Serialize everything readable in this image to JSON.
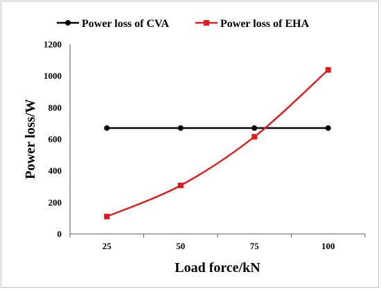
{
  "chart_data": {
    "type": "line",
    "title": "",
    "xlabel": "Load force/kN",
    "ylabel": "Power loss/W",
    "categories": [
      "25",
      "50",
      "75",
      "100"
    ],
    "ylim": [
      0,
      1200
    ],
    "yticks": [
      "0",
      "200",
      "400",
      "600",
      "800",
      "1000",
      "1200"
    ],
    "grid": false,
    "legend_position": "top",
    "series": [
      {
        "name": "Power loss of CVA",
        "values": [
          670,
          670,
          670,
          670
        ],
        "color": "#000000",
        "marker": "circle"
      },
      {
        "name": "Power loss of EHA",
        "values": [
          110,
          307,
          615,
          1038
        ],
        "color": "#e11b1b",
        "marker": "square"
      }
    ]
  }
}
